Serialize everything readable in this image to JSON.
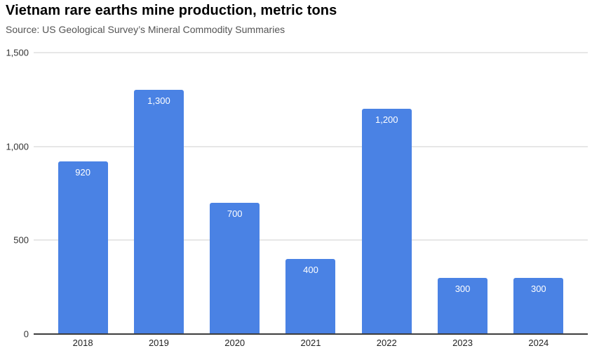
{
  "header": {
    "title": "Vietnam rare earths mine production, metric tons",
    "source": "Source: US Geological Survey’s Mineral Commodity Summaries"
  },
  "colors": {
    "bar": "#4a82e4",
    "value_label": "#ffffff",
    "gridline": "#e7e7e7",
    "baseline": "#3d3d3d",
    "axis_label": "#333333",
    "title": "#000000",
    "source": "#545454",
    "background": "#ffffff"
  },
  "chart_data": {
    "type": "bar",
    "title": "Vietnam rare earths mine production, metric tons",
    "subtitle": "Source: US Geological Survey’s Mineral Commodity Summaries",
    "categories": [
      "2018",
      "2019",
      "2020",
      "2021",
      "2022",
      "2023",
      "2024"
    ],
    "values": [
      920,
      1300,
      700,
      400,
      1200,
      300,
      300
    ],
    "value_labels": [
      "920",
      "1,300",
      "700",
      "400",
      "1,200",
      "300",
      "300"
    ],
    "xlabel": "",
    "ylabel": "",
    "ylim": [
      0,
      1500
    ],
    "yticks": [
      {
        "value": 0,
        "label": "0"
      },
      {
        "value": 500,
        "label": "500"
      },
      {
        "value": 1000,
        "label": "1,000"
      },
      {
        "value": 1500,
        "label": "1,500"
      }
    ],
    "grid": true,
    "legend_position": "none",
    "value_labels_position": "inside-top",
    "bar_color": "#4a82e4"
  }
}
